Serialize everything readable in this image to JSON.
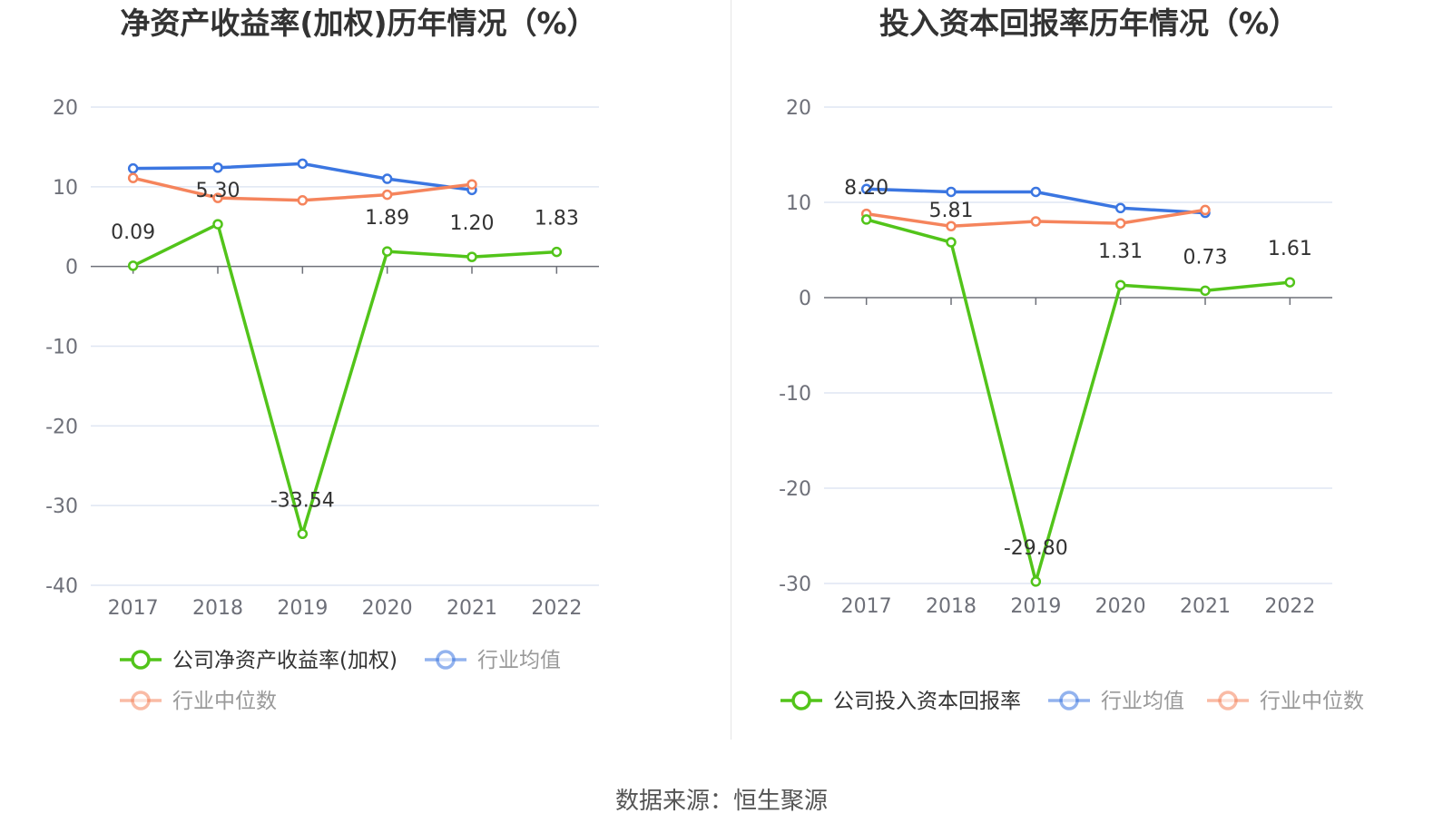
{
  "source": "数据来源：恒生聚源",
  "colors": {
    "company": "#52c41a",
    "average": "#3b76e1",
    "median": "#f5845c",
    "grid": "#dfe6f3",
    "axis": "#6e7079"
  },
  "chart_data": [
    {
      "type": "line",
      "title": "净资产收益率(加权)历年情况（%）",
      "categories": [
        "2017",
        "2018",
        "2019",
        "2020",
        "2021",
        "2022"
      ],
      "ylim": [
        -40,
        20
      ],
      "yticks": [
        20,
        10,
        0,
        -10,
        -20,
        -30,
        -40
      ],
      "grid": true,
      "legend_position": "bottom",
      "series": [
        {
          "name": "公司净资产收益率(加权)",
          "key": "company",
          "values": [
            0.09,
            5.3,
            -33.54,
            1.89,
            1.2,
            1.83
          ],
          "labels": [
            "0.09",
            "5.30",
            "-33.54",
            "1.89",
            "1.20",
            "1.83"
          ]
        },
        {
          "name": "行业均值",
          "key": "average",
          "values": [
            12.3,
            12.4,
            12.9,
            11.0,
            9.6,
            null
          ]
        },
        {
          "name": "行业中位数",
          "key": "median",
          "values": [
            11.1,
            8.6,
            8.3,
            9.0,
            10.3,
            null
          ]
        }
      ]
    },
    {
      "type": "line",
      "title": "投入资本回报率历年情况（%）",
      "categories": [
        "2017",
        "2018",
        "2019",
        "2020",
        "2021",
        "2022"
      ],
      "ylim": [
        -30,
        20
      ],
      "yticks": [
        20,
        10,
        0,
        -10,
        -20,
        -30
      ],
      "grid": true,
      "legend_position": "bottom",
      "series": [
        {
          "name": "公司投入资本回报率",
          "key": "company",
          "values": [
            8.2,
            5.81,
            -29.8,
            1.31,
            0.73,
            1.61
          ],
          "labels": [
            "8.20",
            "5.81",
            "-29.80",
            "1.31",
            "0.73",
            "1.61"
          ]
        },
        {
          "name": "行业均值",
          "key": "average",
          "values": [
            11.4,
            11.1,
            11.1,
            9.4,
            8.9,
            null
          ]
        },
        {
          "name": "行业中位数",
          "key": "median",
          "values": [
            8.8,
            7.5,
            8.0,
            7.8,
            9.2,
            null
          ]
        }
      ]
    }
  ]
}
